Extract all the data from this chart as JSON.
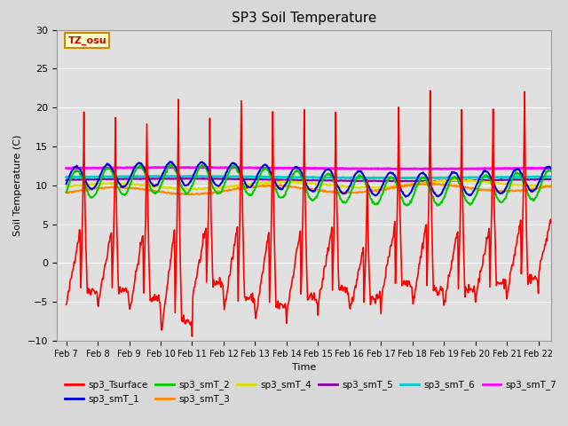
{
  "title": "SP3 Soil Temperature",
  "ylabel": "Soil Temperature (C)",
  "xlabel": "Time",
  "xlim_days": [
    6.7,
    22.4
  ],
  "ylim": [
    -10,
    30
  ],
  "yticks": [
    -10,
    -5,
    0,
    5,
    10,
    15,
    20,
    25,
    30
  ],
  "xtick_labels": [
    "Feb 7",
    "Feb 8",
    "Feb 9",
    "Feb 10",
    "Feb 11",
    "Feb 12",
    "Feb 13",
    "Feb 14",
    "Feb 15",
    "Feb 16",
    "Feb 17",
    "Feb 18",
    "Feb 19",
    "Feb 20",
    "Feb 21",
    "Feb 22"
  ],
  "xtick_days": [
    7,
    8,
    9,
    10,
    11,
    12,
    13,
    14,
    15,
    16,
    17,
    18,
    19,
    20,
    21,
    22
  ],
  "background_color": "#d8d8d8",
  "plot_bg_color": "#e0e0e0",
  "grid_color": "#ffffff",
  "series_colors": {
    "sp3_Tsurface": "#ff0000",
    "sp3_smT_1": "#0000dd",
    "sp3_smT_2": "#00cc00",
    "sp3_smT_3": "#ff8800",
    "sp3_smT_4": "#dddd00",
    "sp3_smT_5": "#8800aa",
    "sp3_smT_6": "#00cccc",
    "sp3_smT_7": "#ff00ff"
  },
  "annotation_text": "TZ_osu",
  "annotation_color": "#cc0000",
  "annotation_bg": "#ffffcc",
  "annotation_border": "#cc8800"
}
